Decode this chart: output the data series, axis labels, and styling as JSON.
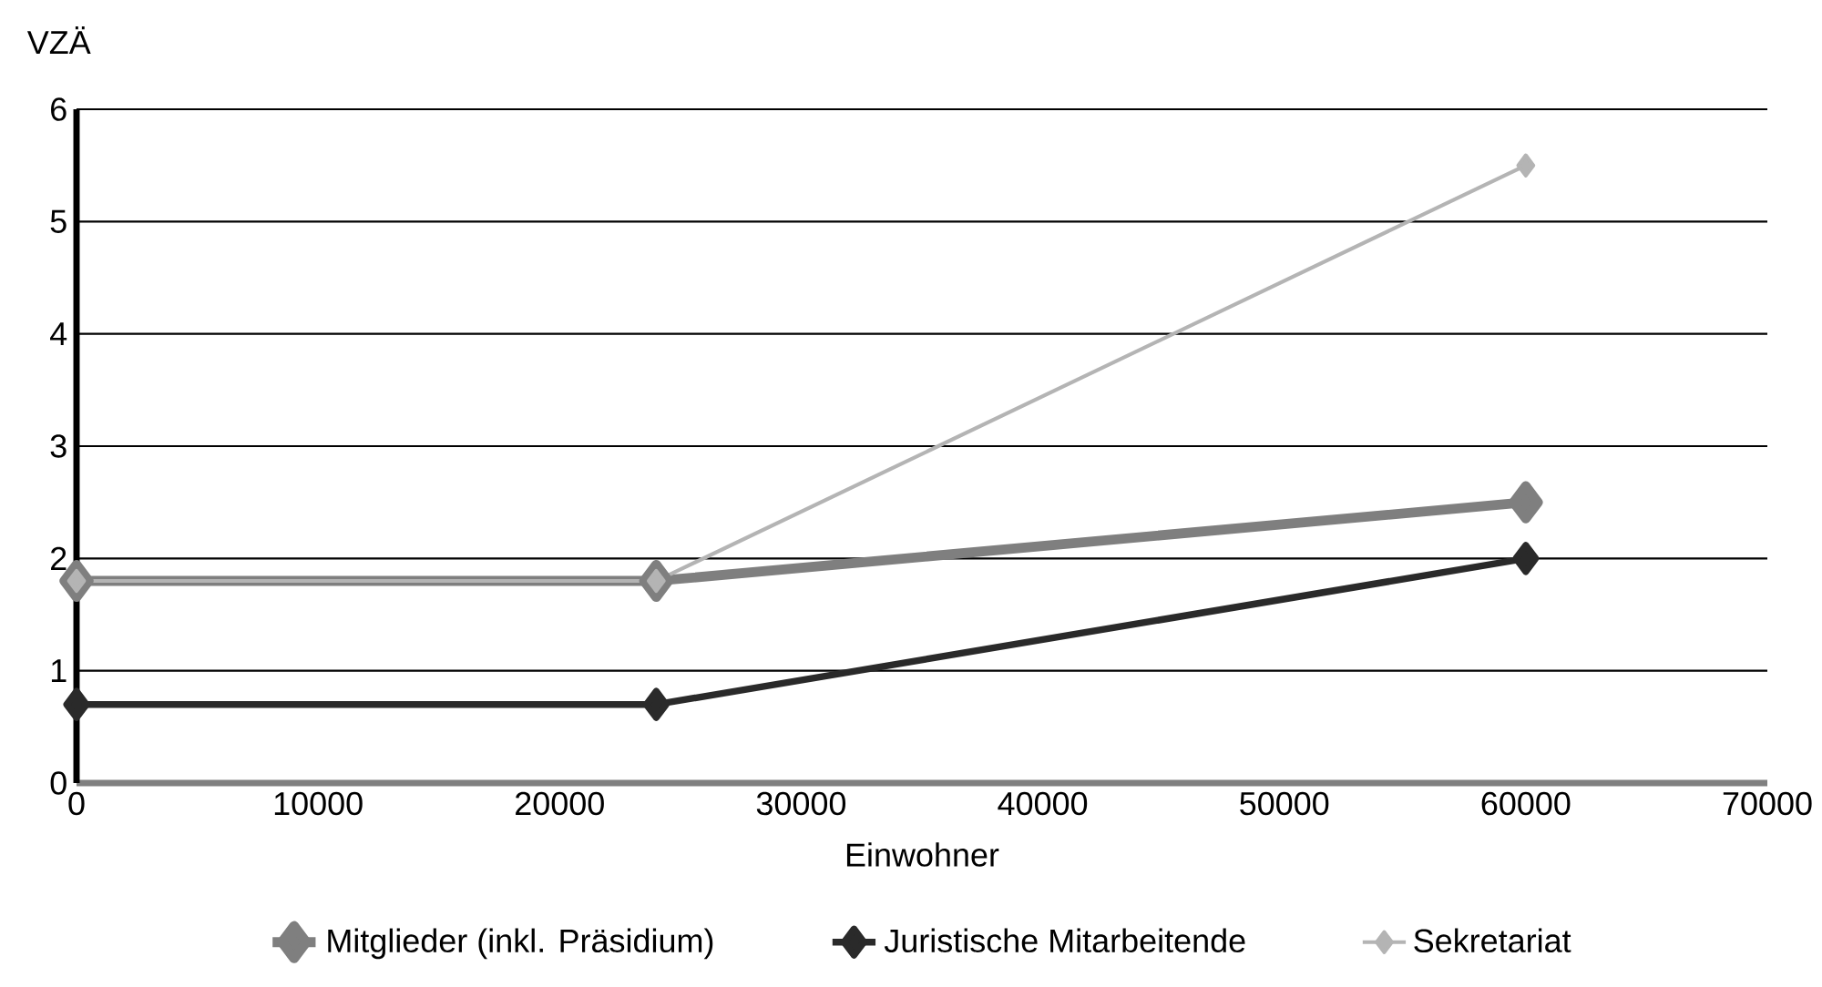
{
  "chart_data": {
    "type": "line",
    "xlabel": "Einwohner",
    "ylabel": "VZÄ",
    "series": [
      {
        "name": "Mitglieder (inkl. Präsidium)",
        "color": "#7f7f7f",
        "x": [
          0,
          24000,
          60000
        ],
        "values": [
          1.8,
          1.8,
          2.5
        ]
      },
      {
        "name": "Juristische Mitarbeitende",
        "color": "#2a2a2a",
        "x": [
          0,
          24000,
          60000
        ],
        "values": [
          0.7,
          0.7,
          2.0
        ]
      },
      {
        "name": "Sekretariat",
        "color": "#b4b4b4",
        "x": [
          0,
          24000,
          60000
        ],
        "values": [
          1.8,
          1.8,
          5.5
        ]
      }
    ],
    "xlim": [
      0,
      70000
    ],
    "xticks": [
      0,
      10000,
      20000,
      30000,
      40000,
      50000,
      60000,
      70000
    ],
    "ylim": [
      0,
      6
    ],
    "yticks": [
      0,
      1,
      2,
      3,
      4,
      5,
      6
    ],
    "grid": "y",
    "legend": "bottom",
    "marker": "diamond",
    "line_style": "solid"
  }
}
